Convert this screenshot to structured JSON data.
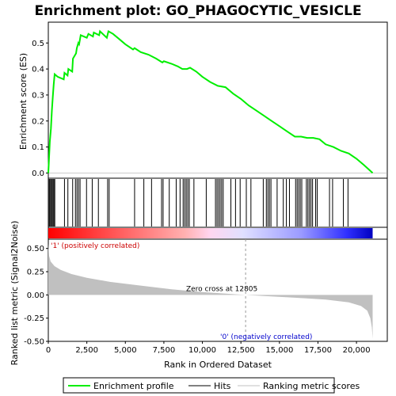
{
  "chart_data": {
    "type": "line",
    "title": "Enrichment plot: GO_PHAGOCYTIC_VESICLE",
    "top_panel": {
      "ylabel": "Enrichment score (ES)",
      "ylim": [
        -0.02,
        0.58
      ],
      "yticks": [
        "0.0",
        "0.1",
        "0.2",
        "0.3",
        "0.4",
        "0.5"
      ],
      "ytick_values": [
        0.0,
        0.1,
        0.2,
        0.3,
        0.4,
        0.5
      ],
      "series": [
        {
          "name": "Enrichment profile",
          "color": "#00ee00",
          "points": [
            [
              0,
              0.0
            ],
            [
              40,
              0.05
            ],
            [
              100,
              0.12
            ],
            [
              170,
              0.17
            ],
            [
              230,
              0.24
            ],
            [
              290,
              0.29
            ],
            [
              350,
              0.34
            ],
            [
              410,
              0.38
            ],
            [
              600,
              0.37
            ],
            [
              1000,
              0.36
            ],
            [
              1050,
              0.385
            ],
            [
              1250,
              0.375
            ],
            [
              1300,
              0.4
            ],
            [
              1550,
              0.39
            ],
            [
              1600,
              0.44
            ],
            [
              1800,
              0.46
            ],
            [
              1850,
              0.48
            ],
            [
              1950,
              0.5
            ],
            [
              2000,
              0.495
            ],
            [
              2100,
              0.53
            ],
            [
              2500,
              0.52
            ],
            [
              2600,
              0.535
            ],
            [
              2900,
              0.525
            ],
            [
              2950,
              0.54
            ],
            [
              3300,
              0.53
            ],
            [
              3350,
              0.545
            ],
            [
              3800,
              0.52
            ],
            [
              3900,
              0.545
            ],
            [
              4200,
              0.535
            ],
            [
              4600,
              0.515
            ],
            [
              5000,
              0.495
            ],
            [
              5500,
              0.475
            ],
            [
              5600,
              0.48
            ],
            [
              6000,
              0.465
            ],
            [
              6500,
              0.455
            ],
            [
              7000,
              0.44
            ],
            [
              7400,
              0.425
            ],
            [
              7500,
              0.43
            ],
            [
              8000,
              0.42
            ],
            [
              8400,
              0.41
            ],
            [
              8700,
              0.4
            ],
            [
              9000,
              0.4
            ],
            [
              9200,
              0.405
            ],
            [
              9600,
              0.39
            ],
            [
              10000,
              0.37
            ],
            [
              10500,
              0.35
            ],
            [
              11000,
              0.335
            ],
            [
              11500,
              0.33
            ],
            [
              12000,
              0.305
            ],
            [
              12500,
              0.285
            ],
            [
              13000,
              0.26
            ],
            [
              13500,
              0.24
            ],
            [
              14000,
              0.22
            ],
            [
              14500,
              0.2
            ],
            [
              15000,
              0.18
            ],
            [
              15500,
              0.16
            ],
            [
              16000,
              0.14
            ],
            [
              16400,
              0.14
            ],
            [
              16800,
              0.135
            ],
            [
              17200,
              0.135
            ],
            [
              17600,
              0.13
            ],
            [
              18000,
              0.11
            ],
            [
              18500,
              0.1
            ],
            [
              19000,
              0.085
            ],
            [
              19500,
              0.075
            ],
            [
              20000,
              0.055
            ],
            [
              20500,
              0.03
            ],
            [
              21050,
              0.0
            ]
          ]
        }
      ]
    },
    "hits_panel": {
      "hit_ranks": [
        60,
        110,
        170,
        240,
        300,
        360,
        420,
        1050,
        1270,
        1580,
        1760,
        1860,
        1960,
        2060,
        2480,
        2850,
        3250,
        3850,
        3950,
        5600,
        6200,
        6700,
        7350,
        7450,
        7850,
        8300,
        8550,
        8750,
        8850,
        8950,
        9050,
        9150,
        9450,
        10250,
        10850,
        10950,
        11050,
        11150,
        11250,
        11350,
        11850,
        12150,
        12450,
        12850,
        13150,
        13950,
        14150,
        14250,
        14350,
        14450,
        14850,
        15250,
        15450,
        15650,
        16050,
        16150,
        16250,
        16350,
        16450,
        16750,
        16850,
        16950,
        17050,
        17150,
        17350,
        17450,
        18250,
        18450,
        19150,
        19450
      ]
    },
    "bottom_panel": {
      "ylabel": "Ranked list metric (Signal2Noise)",
      "ylim": [
        -0.5,
        0.6
      ],
      "yticks": [
        "0.50",
        "0.25",
        "0.00",
        "-0.25",
        "-0.50"
      ],
      "ytick_values": [
        0.5,
        0.25,
        0.0,
        -0.25,
        -0.5
      ],
      "metric_curve": [
        [
          0,
          0.55
        ],
        [
          50,
          0.42
        ],
        [
          150,
          0.36
        ],
        [
          400,
          0.31
        ],
        [
          800,
          0.27
        ],
        [
          1500,
          0.225
        ],
        [
          2500,
          0.185
        ],
        [
          4000,
          0.14
        ],
        [
          6000,
          0.1
        ],
        [
          8000,
          0.06
        ],
        [
          10000,
          0.03
        ],
        [
          12000,
          0.008
        ],
        [
          12805,
          0.0
        ],
        [
          14000,
          -0.012
        ],
        [
          16000,
          -0.03
        ],
        [
          18000,
          -0.05
        ],
        [
          19500,
          -0.08
        ],
        [
          20300,
          -0.12
        ],
        [
          20700,
          -0.17
        ],
        [
          20900,
          -0.25
        ],
        [
          21000,
          -0.35
        ],
        [
          21050,
          -0.47
        ]
      ],
      "zero_cross": 12805
    },
    "xlabel": "Rank in Ordered Dataset",
    "xlim": [
      0,
      22000
    ],
    "xticks": [
      "0",
      "2,500",
      "5,000",
      "7,500",
      "10,000",
      "12,500",
      "15,000",
      "17,500",
      "20,000"
    ],
    "xtick_values": [
      0,
      2500,
      5000,
      7500,
      10000,
      12500,
      15000,
      17500,
      20000
    ],
    "n_genes": 21050,
    "annotations": {
      "positive": "'1' (positively correlated)",
      "negative": "'0' (negatively correlated)",
      "zero_cross": "Zero cross at 12805"
    },
    "legend": {
      "placement": "bottom",
      "entries": [
        "Enrichment profile",
        "Hits",
        "Ranking metric scores"
      ]
    },
    "colors": {
      "profile": "#00ee00",
      "hits": "#000000",
      "metric": "#c0c0c0",
      "positive_text": "#cc0000",
      "negative_text": "#0000cc"
    }
  }
}
